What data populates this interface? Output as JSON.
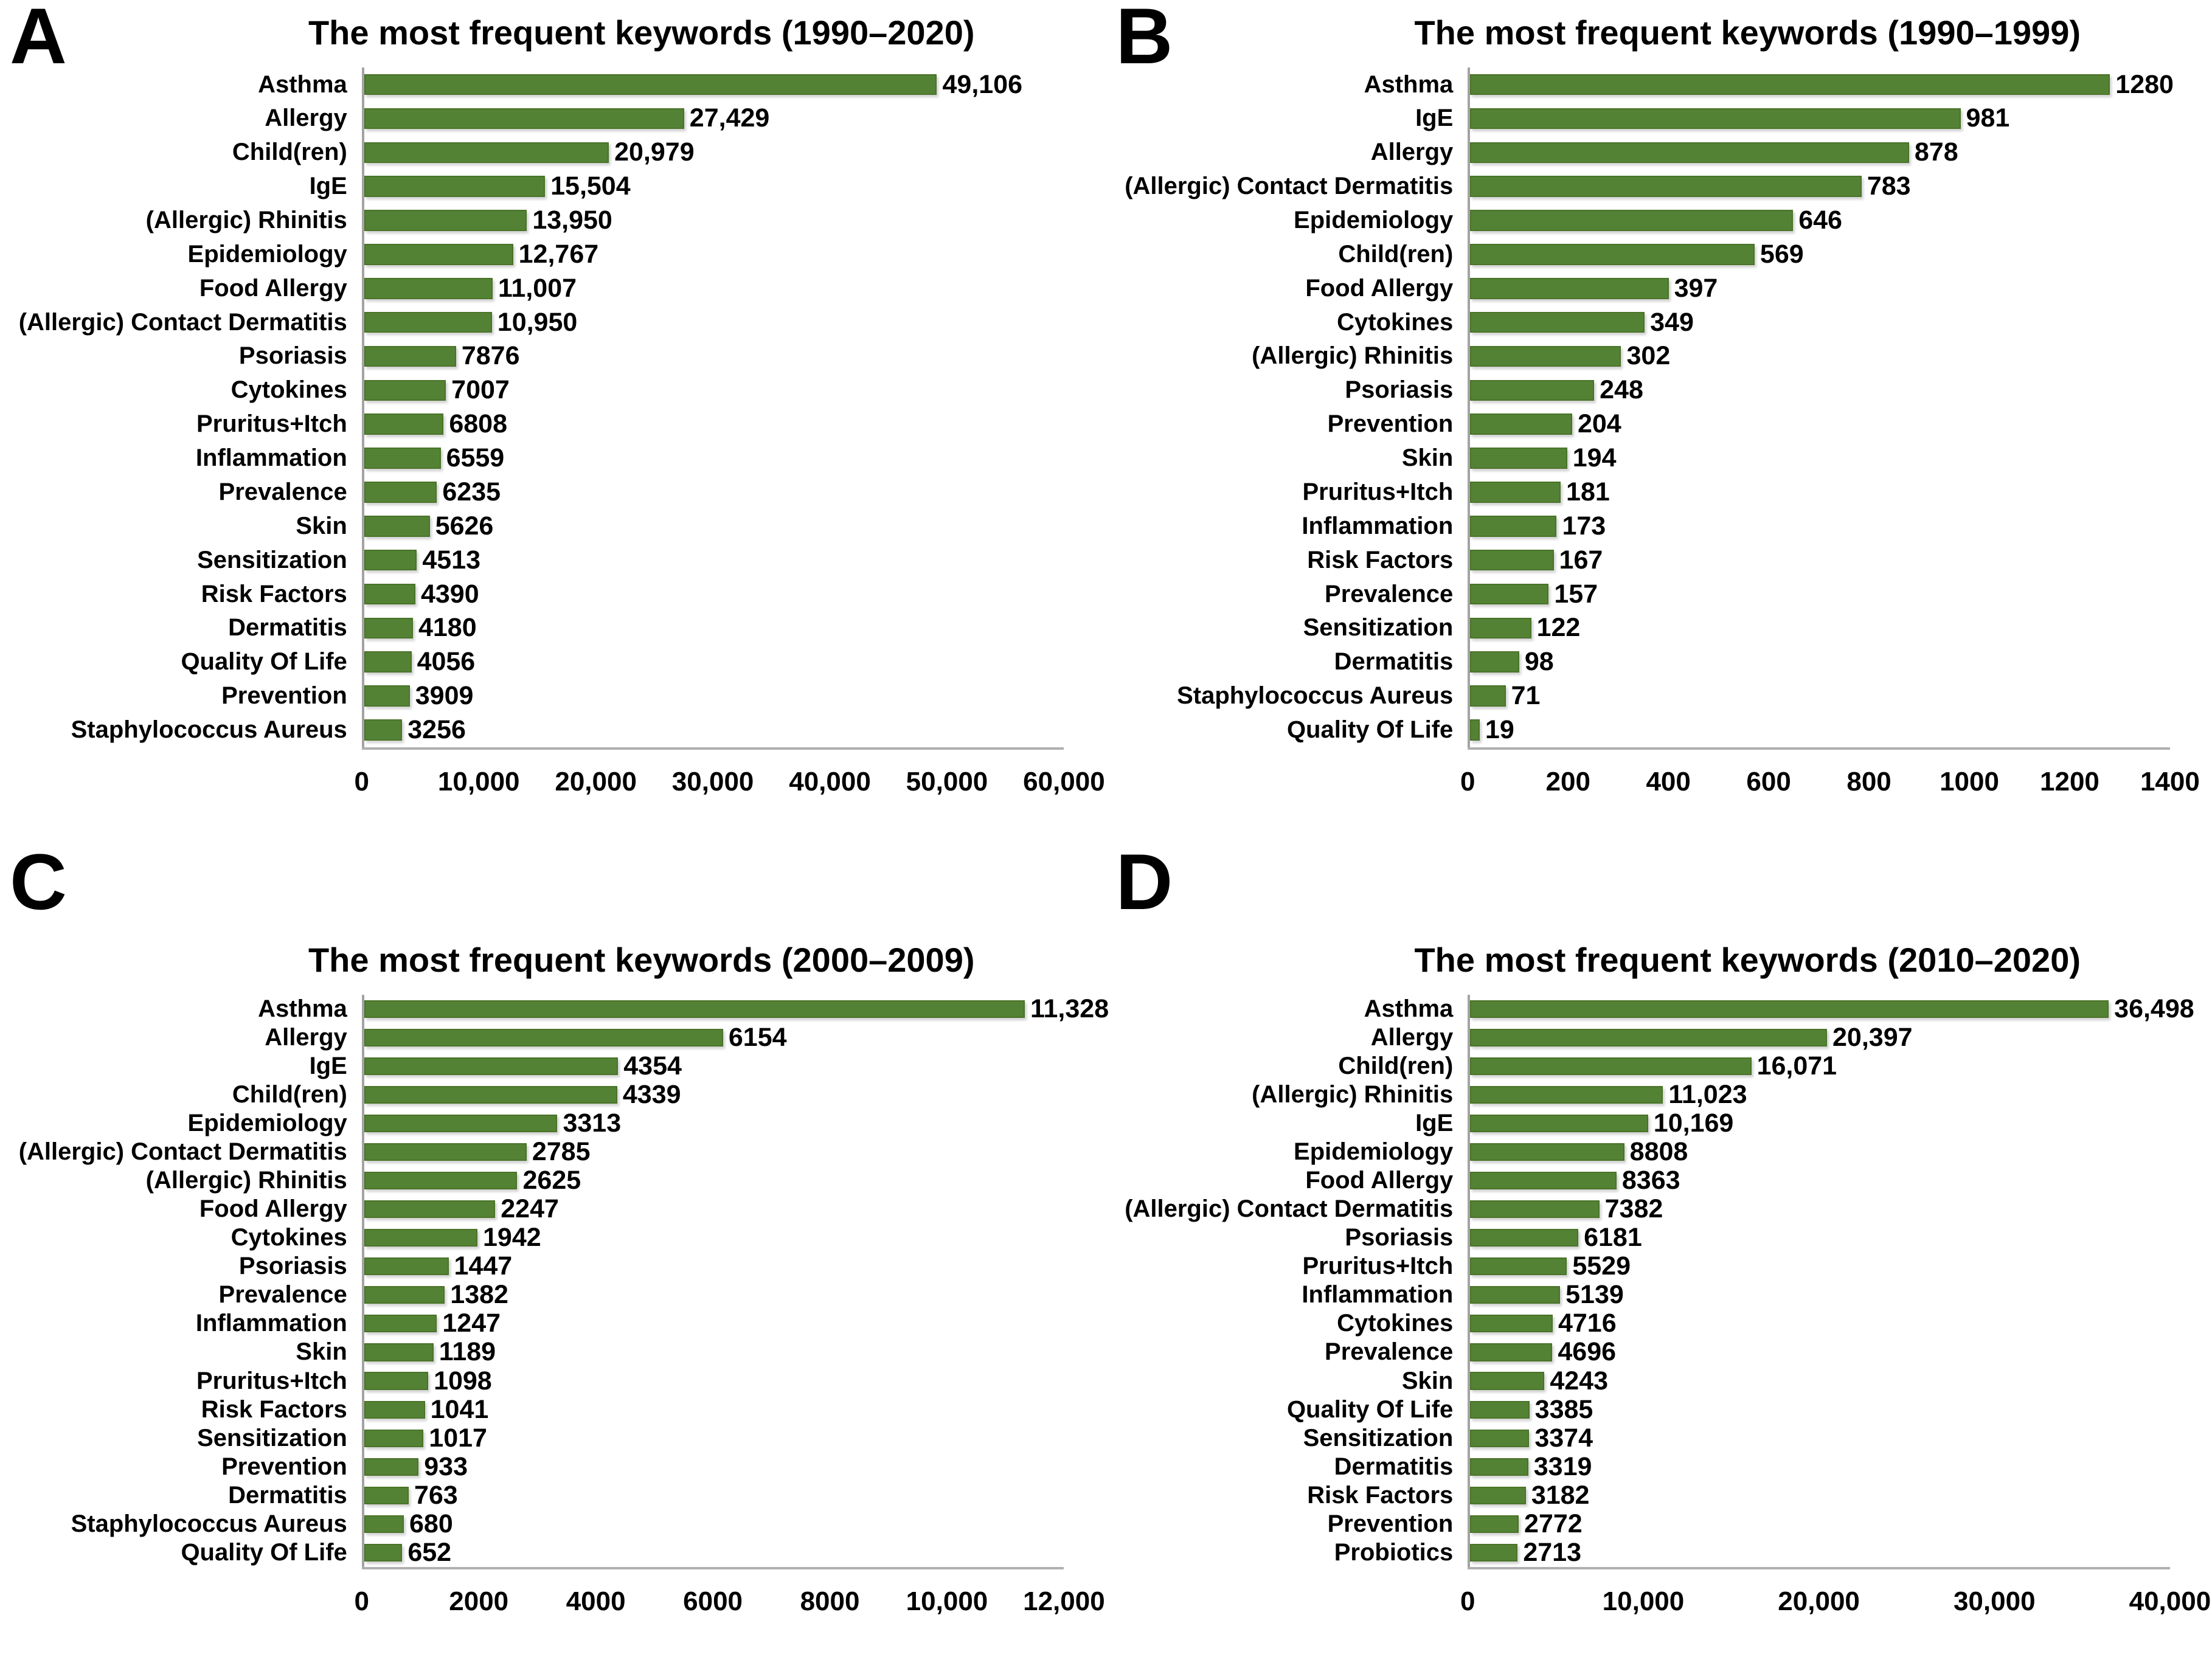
{
  "style": {
    "bar_color": "#548235",
    "bar_border_color": "#4a7328",
    "axis_line_color": "#b0b0b0",
    "text_color": "#000000",
    "background_color": "#ffffff"
  },
  "panels": [
    {
      "letter": "A"
    },
    {
      "letter": "B"
    },
    {
      "letter": "C"
    },
    {
      "letter": "D"
    }
  ],
  "chart_data": [
    {
      "type": "bar",
      "orientation": "horizontal",
      "title": "The most frequent keywords (1990–2020)",
      "xlim": [
        0,
        60000
      ],
      "x_tick_values": [
        0,
        10000,
        20000,
        30000,
        40000,
        50000,
        60000
      ],
      "x_tick_labels": [
        "0",
        "10,000",
        "20,000",
        "30,000",
        "40,000",
        "50,000",
        "60,000"
      ],
      "categories": [
        "Asthma",
        "Allergy",
        "Child(ren)",
        "IgE",
        "(Allergic) Rhinitis",
        "Epidemiology",
        "Food Allergy",
        "(Allergic) Contact Dermatitis",
        "Psoriasis",
        "Cytokines",
        "Pruritus+Itch",
        "Inflammation",
        "Prevalence",
        "Skin",
        "Sensitization",
        "Risk Factors",
        "Dermatitis",
        "Quality Of Life",
        "Prevention",
        "Staphylococcus Aureus"
      ],
      "values": [
        49106,
        27429,
        20979,
        15504,
        13950,
        12767,
        11007,
        10950,
        7876,
        7007,
        6808,
        6559,
        6235,
        5626,
        4513,
        4390,
        4180,
        4056,
        3909,
        3256
      ],
      "value_labels": [
        "49,106",
        "27,429",
        "20,979",
        "15,504",
        "13,950",
        "12,767",
        "11,007",
        "10,950",
        "7876",
        "7007",
        "6808",
        "6559",
        "6235",
        "5626",
        "4513",
        "4390",
        "4180",
        "4056",
        "3909",
        "3256"
      ]
    },
    {
      "type": "bar",
      "orientation": "horizontal",
      "title": "The most frequent keywords (1990–1999)",
      "xlim": [
        0,
        1400
      ],
      "x_tick_values": [
        0,
        200,
        400,
        600,
        800,
        1000,
        1200,
        1400
      ],
      "x_tick_labels": [
        "0",
        "200",
        "400",
        "600",
        "800",
        "1000",
        "1200",
        "1400"
      ],
      "categories": [
        "Asthma",
        "IgE",
        "Allergy",
        "(Allergic) Contact Dermatitis",
        "Epidemiology",
        "Child(ren)",
        "Food Allergy",
        "Cytokines",
        "(Allergic) Rhinitis",
        "Psoriasis",
        "Prevention",
        "Skin",
        "Pruritus+Itch",
        "Inflammation",
        "Risk Factors",
        "Prevalence",
        "Sensitization",
        "Dermatitis",
        "Staphylococcus Aureus",
        "Quality Of Life"
      ],
      "values": [
        1280,
        981,
        878,
        783,
        646,
        569,
        397,
        349,
        302,
        248,
        204,
        194,
        181,
        173,
        167,
        157,
        122,
        98,
        71,
        19
      ],
      "value_labels": [
        "1280",
        "981",
        "878",
        "783",
        "646",
        "569",
        "397",
        "349",
        "302",
        "248",
        "204",
        "194",
        "181",
        "173",
        "167",
        "157",
        "122",
        "98",
        "71",
        "19"
      ]
    },
    {
      "type": "bar",
      "orientation": "horizontal",
      "title": "The most frequent keywords (2000–2009)",
      "xlim": [
        0,
        12000
      ],
      "x_tick_values": [
        0,
        2000,
        4000,
        6000,
        8000,
        10000,
        12000
      ],
      "x_tick_labels": [
        "0",
        "2000",
        "4000",
        "6000",
        "8000",
        "10,000",
        "12,000"
      ],
      "categories": [
        "Asthma",
        "Allergy",
        "IgE",
        "Child(ren)",
        "Epidemiology",
        "(Allergic) Contact Dermatitis",
        "(Allergic) Rhinitis",
        "Food Allergy",
        "Cytokines",
        "Psoriasis",
        "Prevalence",
        "Inflammation",
        "Skin",
        "Pruritus+Itch",
        "Risk Factors",
        "Sensitization",
        "Prevention",
        "Dermatitis",
        "Staphylococcus Aureus",
        "Quality Of Life"
      ],
      "values": [
        11328,
        6154,
        4354,
        4339,
        3313,
        2785,
        2625,
        2247,
        1942,
        1447,
        1382,
        1247,
        1189,
        1098,
        1041,
        1017,
        933,
        763,
        680,
        652
      ],
      "value_labels": [
        "11,328",
        "6154",
        "4354",
        "4339",
        "3313",
        "2785",
        "2625",
        "2247",
        "1942",
        "1447",
        "1382",
        "1247",
        "1189",
        "1098",
        "1041",
        "1017",
        "933",
        "763",
        "680",
        "652"
      ]
    },
    {
      "type": "bar",
      "orientation": "horizontal",
      "title": "The most frequent keywords (2010–2020)",
      "xlim": [
        0,
        40000
      ],
      "x_tick_values": [
        0,
        10000,
        20000,
        30000,
        40000
      ],
      "x_tick_labels": [
        "0",
        "10,000",
        "20,000",
        "30,000",
        "40,000"
      ],
      "categories": [
        "Asthma",
        "Allergy",
        "Child(ren)",
        "(Allergic) Rhinitis",
        "IgE",
        "Epidemiology",
        "Food Allergy",
        "(Allergic) Contact Dermatitis",
        "Psoriasis",
        "Pruritus+Itch",
        "Inflammation",
        "Cytokines",
        "Prevalence",
        "Skin",
        "Quality Of Life",
        "Sensitization",
        "Dermatitis",
        "Risk Factors",
        "Prevention",
        "Probiotics"
      ],
      "values": [
        36498,
        20397,
        16071,
        11023,
        10169,
        8808,
        8363,
        7382,
        6181,
        5529,
        5139,
        4716,
        4696,
        4243,
        3385,
        3374,
        3319,
        3182,
        2772,
        2713
      ],
      "value_labels": [
        "36,498",
        "20,397",
        "16,071",
        "11,023",
        "10,169",
        "8808",
        "8363",
        "7382",
        "6181",
        "5529",
        "5139",
        "4716",
        "4696",
        "4243",
        "3385",
        "3374",
        "3319",
        "3182",
        "2772",
        "2713"
      ]
    }
  ]
}
